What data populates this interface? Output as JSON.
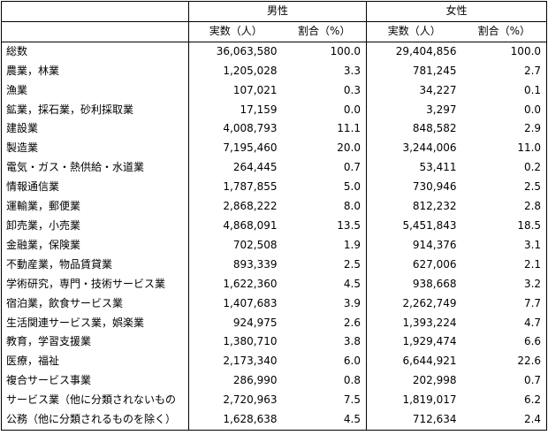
{
  "header": {
    "male": "男性",
    "female": "女性",
    "count_label": "実数（人）",
    "ratio_label": "割合（%）"
  },
  "rows": [
    {
      "label": "総数",
      "m_count": "36,063,580",
      "m_pct": "100.0",
      "f_count": "29,404,856",
      "f_pct": "100.0"
    },
    {
      "label": "農業，林業",
      "m_count": "1,205,028",
      "m_pct": "3.3",
      "f_count": "781,245",
      "f_pct": "2.7"
    },
    {
      "label": "漁業",
      "m_count": "107,021",
      "m_pct": "0.3",
      "f_count": "34,227",
      "f_pct": "0.1"
    },
    {
      "label": "鉱業，採石業，砂利採取業",
      "m_count": "17,159",
      "m_pct": "0.0",
      "f_count": "3,297",
      "f_pct": "0.0"
    },
    {
      "label": "建設業",
      "m_count": "4,008,793",
      "m_pct": "11.1",
      "f_count": "848,582",
      "f_pct": "2.9"
    },
    {
      "label": "製造業",
      "m_count": "7,195,460",
      "m_pct": "20.0",
      "f_count": "3,244,006",
      "f_pct": "11.0"
    },
    {
      "label": "電気・ガス・熱供給・水道業",
      "m_count": "264,445",
      "m_pct": "0.7",
      "f_count": "53,411",
      "f_pct": "0.2"
    },
    {
      "label": "情報通信業",
      "m_count": "1,787,855",
      "m_pct": "5.0",
      "f_count": "730,946",
      "f_pct": "2.5"
    },
    {
      "label": "運輸業，郵便業",
      "m_count": "2,868,222",
      "m_pct": "8.0",
      "f_count": "812,232",
      "f_pct": "2.8"
    },
    {
      "label": "卸売業，小売業",
      "m_count": "4,868,091",
      "m_pct": "13.5",
      "f_count": "5,451,843",
      "f_pct": "18.5"
    },
    {
      "label": "金融業，保険業",
      "m_count": "702,508",
      "m_pct": "1.9",
      "f_count": "914,376",
      "f_pct": "3.1"
    },
    {
      "label": "不動産業，物品賃貸業",
      "m_count": "893,339",
      "m_pct": "2.5",
      "f_count": "627,006",
      "f_pct": "2.1"
    },
    {
      "label": "学術研究，専門・技術サービス業",
      "m_count": "1,622,360",
      "m_pct": "4.5",
      "f_count": "938,668",
      "f_pct": "3.2"
    },
    {
      "label": "宿泊業，飲食サービス業",
      "m_count": "1,407,683",
      "m_pct": "3.9",
      "f_count": "2,262,749",
      "f_pct": "7.7"
    },
    {
      "label": "生活関連サービス業，娯楽業",
      "m_count": "924,975",
      "m_pct": "2.6",
      "f_count": "1,393,224",
      "f_pct": "4.7"
    },
    {
      "label": "教育，学習支援業",
      "m_count": "1,380,710",
      "m_pct": "3.8",
      "f_count": "1,929,474",
      "f_pct": "6.6"
    },
    {
      "label": "医療，福祉",
      "m_count": "2,173,340",
      "m_pct": "6.0",
      "f_count": "6,644,921",
      "f_pct": "22.6"
    },
    {
      "label": "複合サービス事業",
      "m_count": "286,990",
      "m_pct": "0.8",
      "f_count": "202,998",
      "f_pct": "0.7"
    },
    {
      "label": "サービス業（他に分類されないもの",
      "m_count": "2,720,963",
      "m_pct": "7.5",
      "f_count": "1,819,017",
      "f_pct": "6.2"
    },
    {
      "label": "公務（他に分類されるものを除く）",
      "m_count": "1,628,638",
      "m_pct": "4.5",
      "f_count": "712,634",
      "f_pct": "2.4"
    }
  ]
}
